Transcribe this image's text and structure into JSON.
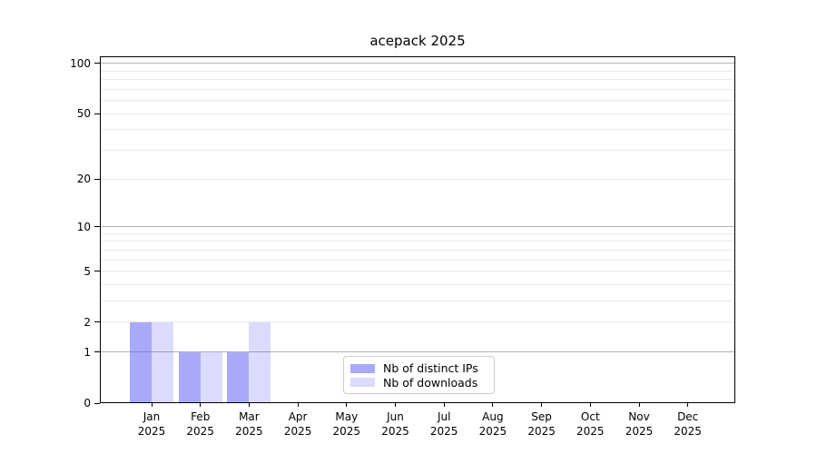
{
  "title": "acepack 2025",
  "chart_data": {
    "type": "bar",
    "title": "acepack 2025",
    "xlabel": "",
    "ylabel": "",
    "categories": [
      "Jan 2025",
      "Feb 2025",
      "Mar 2025",
      "Apr 2025",
      "May 2025",
      "Jun 2025",
      "Jul 2025",
      "Aug 2025",
      "Sep 2025",
      "Oct 2025",
      "Nov 2025",
      "Dec 2025"
    ],
    "x_tick_months": [
      "Jan",
      "Feb",
      "Mar",
      "Apr",
      "May",
      "Jun",
      "Jul",
      "Aug",
      "Sep",
      "Oct",
      "Nov",
      "Dec"
    ],
    "x_tick_year": "2025",
    "series": [
      {
        "name": "Nb of distinct IPs",
        "color": "rgba(90,90,245,0.52)",
        "values": [
          2,
          1,
          1,
          0,
          0,
          0,
          0,
          0,
          0,
          0,
          0,
          0
        ]
      },
      {
        "name": "Nb of downloads",
        "color": "rgba(90,90,245,0.22)",
        "values": [
          2,
          1,
          2,
          0,
          0,
          0,
          0,
          0,
          0,
          0,
          0,
          0
        ]
      }
    ],
    "yscale": "log1p",
    "ylim": [
      0,
      110
    ],
    "y_ticks": [
      0,
      1,
      2,
      5,
      10,
      20,
      50,
      100
    ],
    "y_tick_labels": [
      "0",
      "1",
      "2",
      "5",
      "10",
      "20",
      "50",
      "100"
    ],
    "gridlines_decade": [
      1,
      10,
      100
    ],
    "gridlines_minor": [
      2,
      3,
      4,
      5,
      6,
      7,
      8,
      9,
      20,
      30,
      40,
      50,
      60,
      70,
      80,
      90
    ],
    "grid": true,
    "legend_position": "lower center"
  },
  "legend": {
    "items": [
      {
        "label": "Nb of distinct IPs",
        "color": "rgba(90,90,245,0.52)"
      },
      {
        "label": "Nb of downloads",
        "color": "rgba(90,90,245,0.22)"
      }
    ]
  },
  "colors": {
    "background": "#ffffff",
    "spine": "#000000",
    "gridline_major": "#b4b4b4",
    "gridline_minor": "#eaeaea",
    "text": "#000000",
    "legend_border": "#cccccc"
  }
}
